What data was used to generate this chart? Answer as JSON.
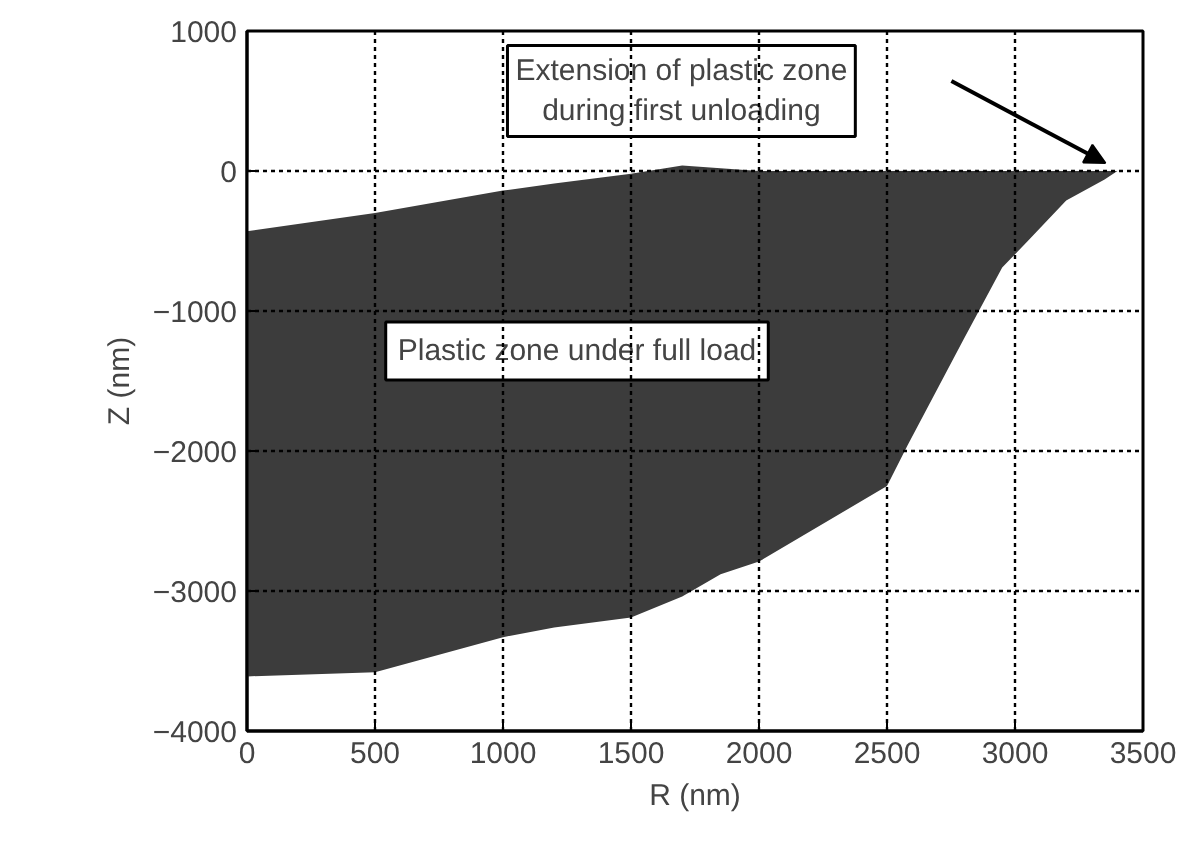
{
  "chart_data": {
    "type": "area",
    "stacked": true,
    "xlabel": "R (nm)",
    "ylabel": "Z (nm)",
    "x": [
      0,
      500,
      1000,
      1200,
      1500,
      1700,
      1850,
      2000,
      2500,
      2580,
      2800,
      2950,
      3050,
      3200,
      3350,
      3400
    ],
    "series": [
      {
        "color": "#ffffff",
        "values": [
          -430,
          -300,
          -140,
          -90,
          -20,
          40,
          20,
          0,
          0,
          0,
          0,
          0,
          0,
          0,
          0,
          0
        ]
      },
      {
        "color": "#3c3c3c",
        "values": [
          -3180,
          -3280,
          -3190,
          -3170,
          -3170,
          -3080,
          -2900,
          -2790,
          -2250,
          -1960,
          -1200,
          -690,
          -500,
          -210,
          -60,
          0
        ]
      }
    ],
    "annotations": [
      "Plastic zone under full load",
      "Extension of plastic zone\nduring first unloading"
    ],
    "xlim": [
      0,
      3500
    ],
    "xticks": [
      0,
      500,
      1000,
      1500,
      2000,
      2500,
      3000,
      3500
    ],
    "ylim": [
      -4000,
      1000
    ],
    "yticks": [
      -4000,
      -3000,
      -2000,
      -1000,
      0,
      1000
    ],
    "grid": true
  }
}
